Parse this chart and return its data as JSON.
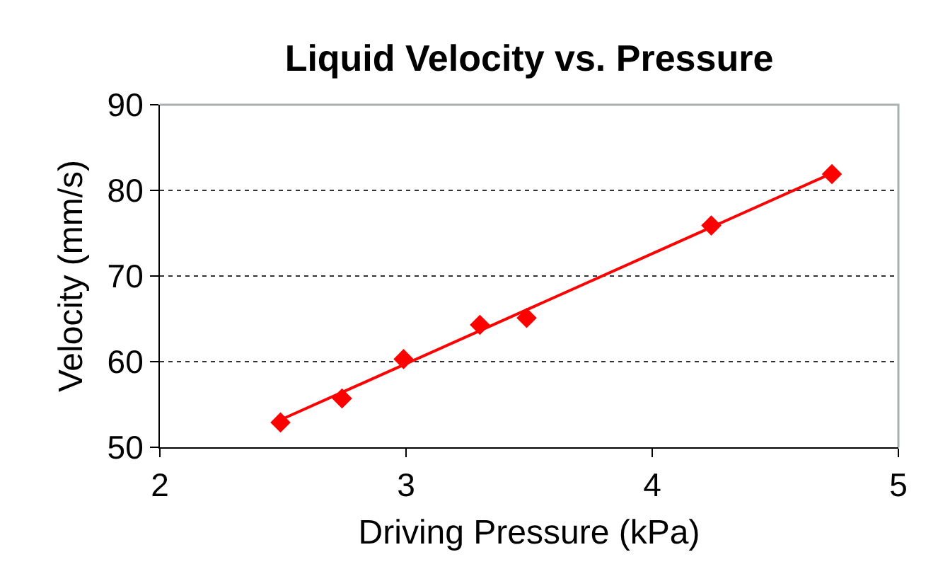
{
  "chart_data": {
    "type": "scatter",
    "title": "Liquid Velocity vs. Pressure",
    "xlabel": "Driving Pressure (kPa)",
    "ylabel": "Velocity (mm/s)",
    "x": [
      2.49,
      2.74,
      2.99,
      3.3,
      3.49,
      4.24,
      4.73
    ],
    "series": [
      {
        "color": "#ff0000",
        "values": [
          52.9,
          55.7,
          60.3,
          64.3,
          65.1,
          75.9,
          81.9
        ]
      },
      {
        "type": "line",
        "x": [
          2.49,
          4.73
        ],
        "values": [
          53.2,
          82.0
        ],
        "color": "#ff0000",
        "marker": "none",
        "line_style": "solid"
      }
    ],
    "xlim": [
      2,
      5
    ],
    "ylim": [
      50,
      90
    ],
    "xticks": [
      2,
      3,
      4,
      5
    ],
    "yticks": [
      50,
      60,
      70,
      80,
      90
    ],
    "grid": "y",
    "marker": "diamond"
  }
}
